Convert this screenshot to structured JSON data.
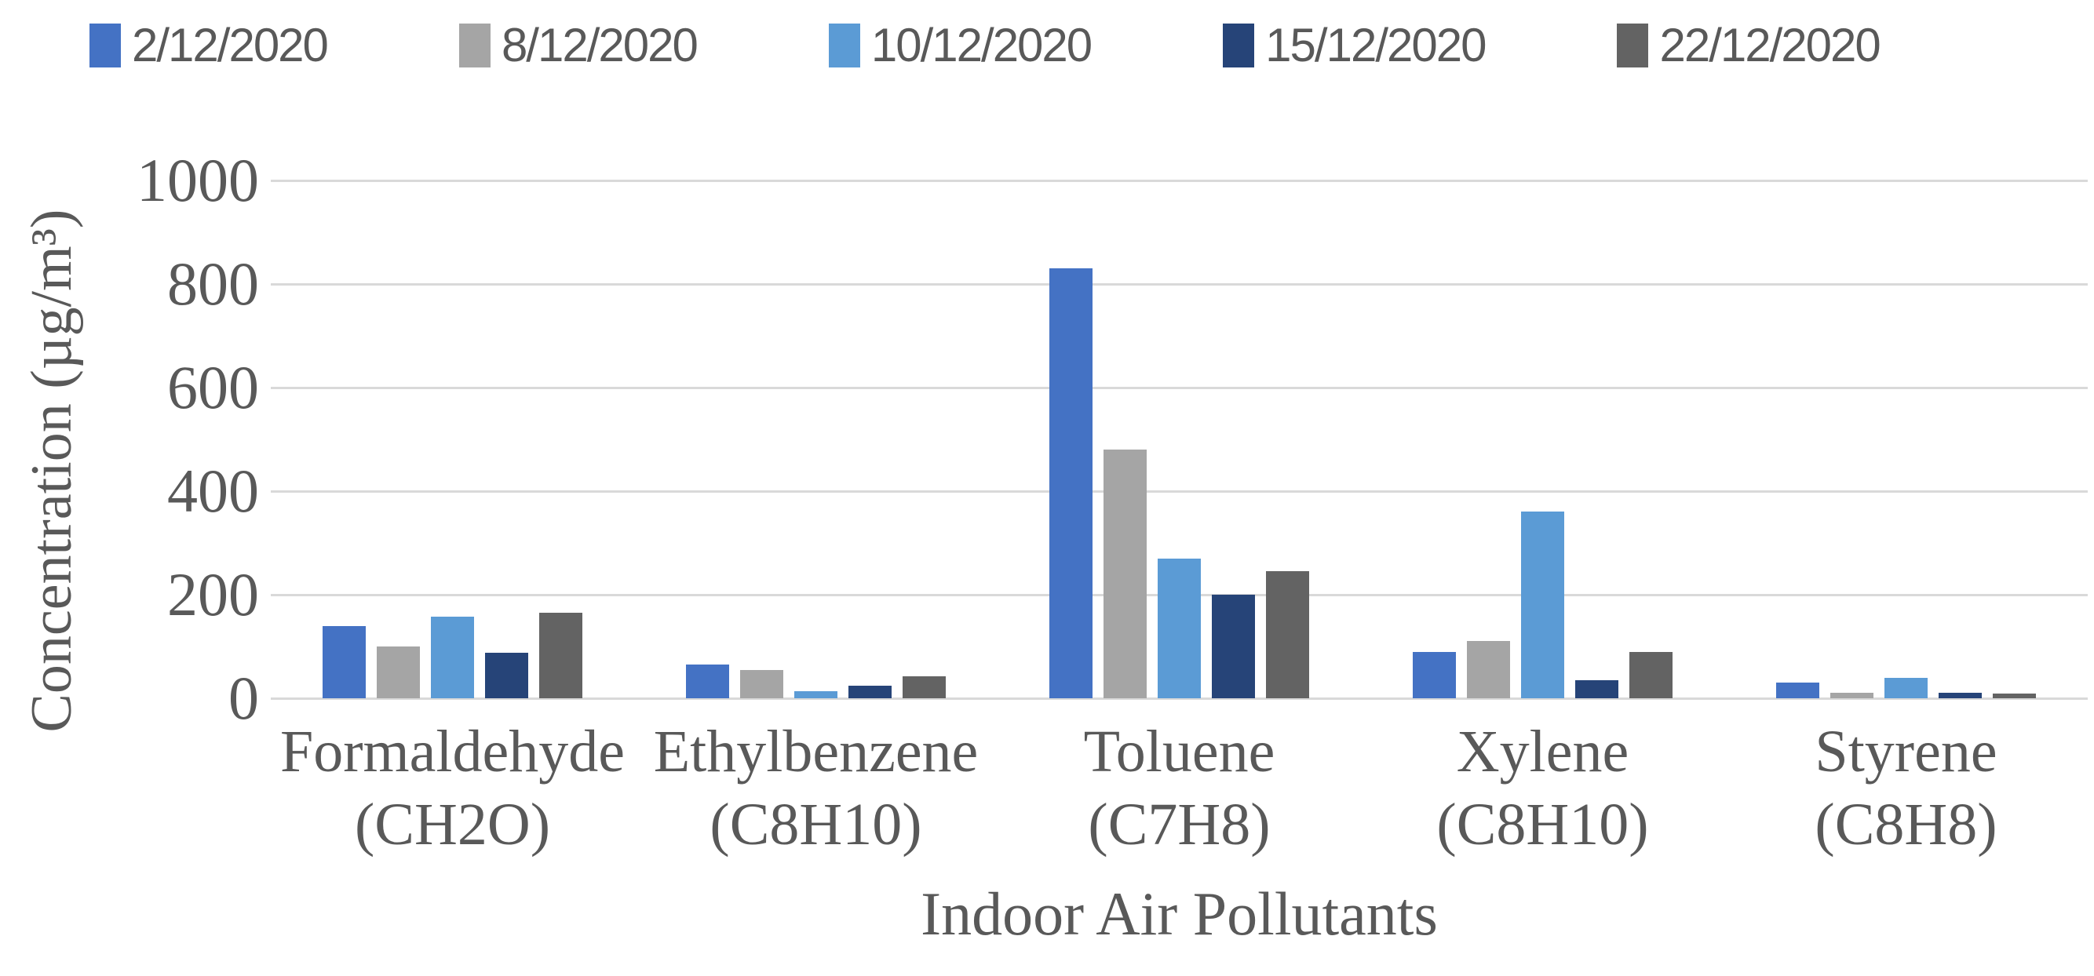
{
  "chart_data": {
    "type": "bar",
    "title": "",
    "xlabel": "Indoor Air Pollutants",
    "ylabel": "Concentration (µg/m³)",
    "ylim": [
      0,
      1000
    ],
    "yticks": [
      0,
      200,
      400,
      600,
      800,
      1000
    ],
    "grid": "horizontal",
    "legend_position": "top",
    "categories": [
      "Formaldehyde (CH2O)",
      "Ethylbenzene (C8H10)",
      "Toluene (C7H8)",
      "Xylene (C8H10)",
      "Styrene (C8H8)"
    ],
    "category_lines": [
      [
        "Formaldehyde",
        "(CH2O)"
      ],
      [
        "Ethylbenzene",
        "(C8H10)"
      ],
      [
        "Toluene",
        "(C7H8)"
      ],
      [
        "Xylene",
        "(C8H10)"
      ],
      [
        "Styrene",
        "(C8H8)"
      ]
    ],
    "series": [
      {
        "name": "2/12/2020",
        "color": "#4472C4",
        "values": [
          140,
          65,
          830,
          90,
          30
        ]
      },
      {
        "name": "8/12/2020",
        "color": "#A5A5A5",
        "values": [
          100,
          55,
          480,
          110,
          10
        ]
      },
      {
        "name": "10/12/2020",
        "color": "#5B9BD5",
        "values": [
          158,
          14,
          270,
          360,
          40
        ]
      },
      {
        "name": "15/12/2020",
        "color": "#264478",
        "values": [
          88,
          24,
          200,
          35,
          10
        ]
      },
      {
        "name": "22/12/2020",
        "color": "#636363",
        "values": [
          165,
          43,
          245,
          90,
          9
        ]
      }
    ],
    "colors": {
      "text": "#595959",
      "gridline": "#D9D9D9",
      "background": "#FFFFFF"
    }
  }
}
